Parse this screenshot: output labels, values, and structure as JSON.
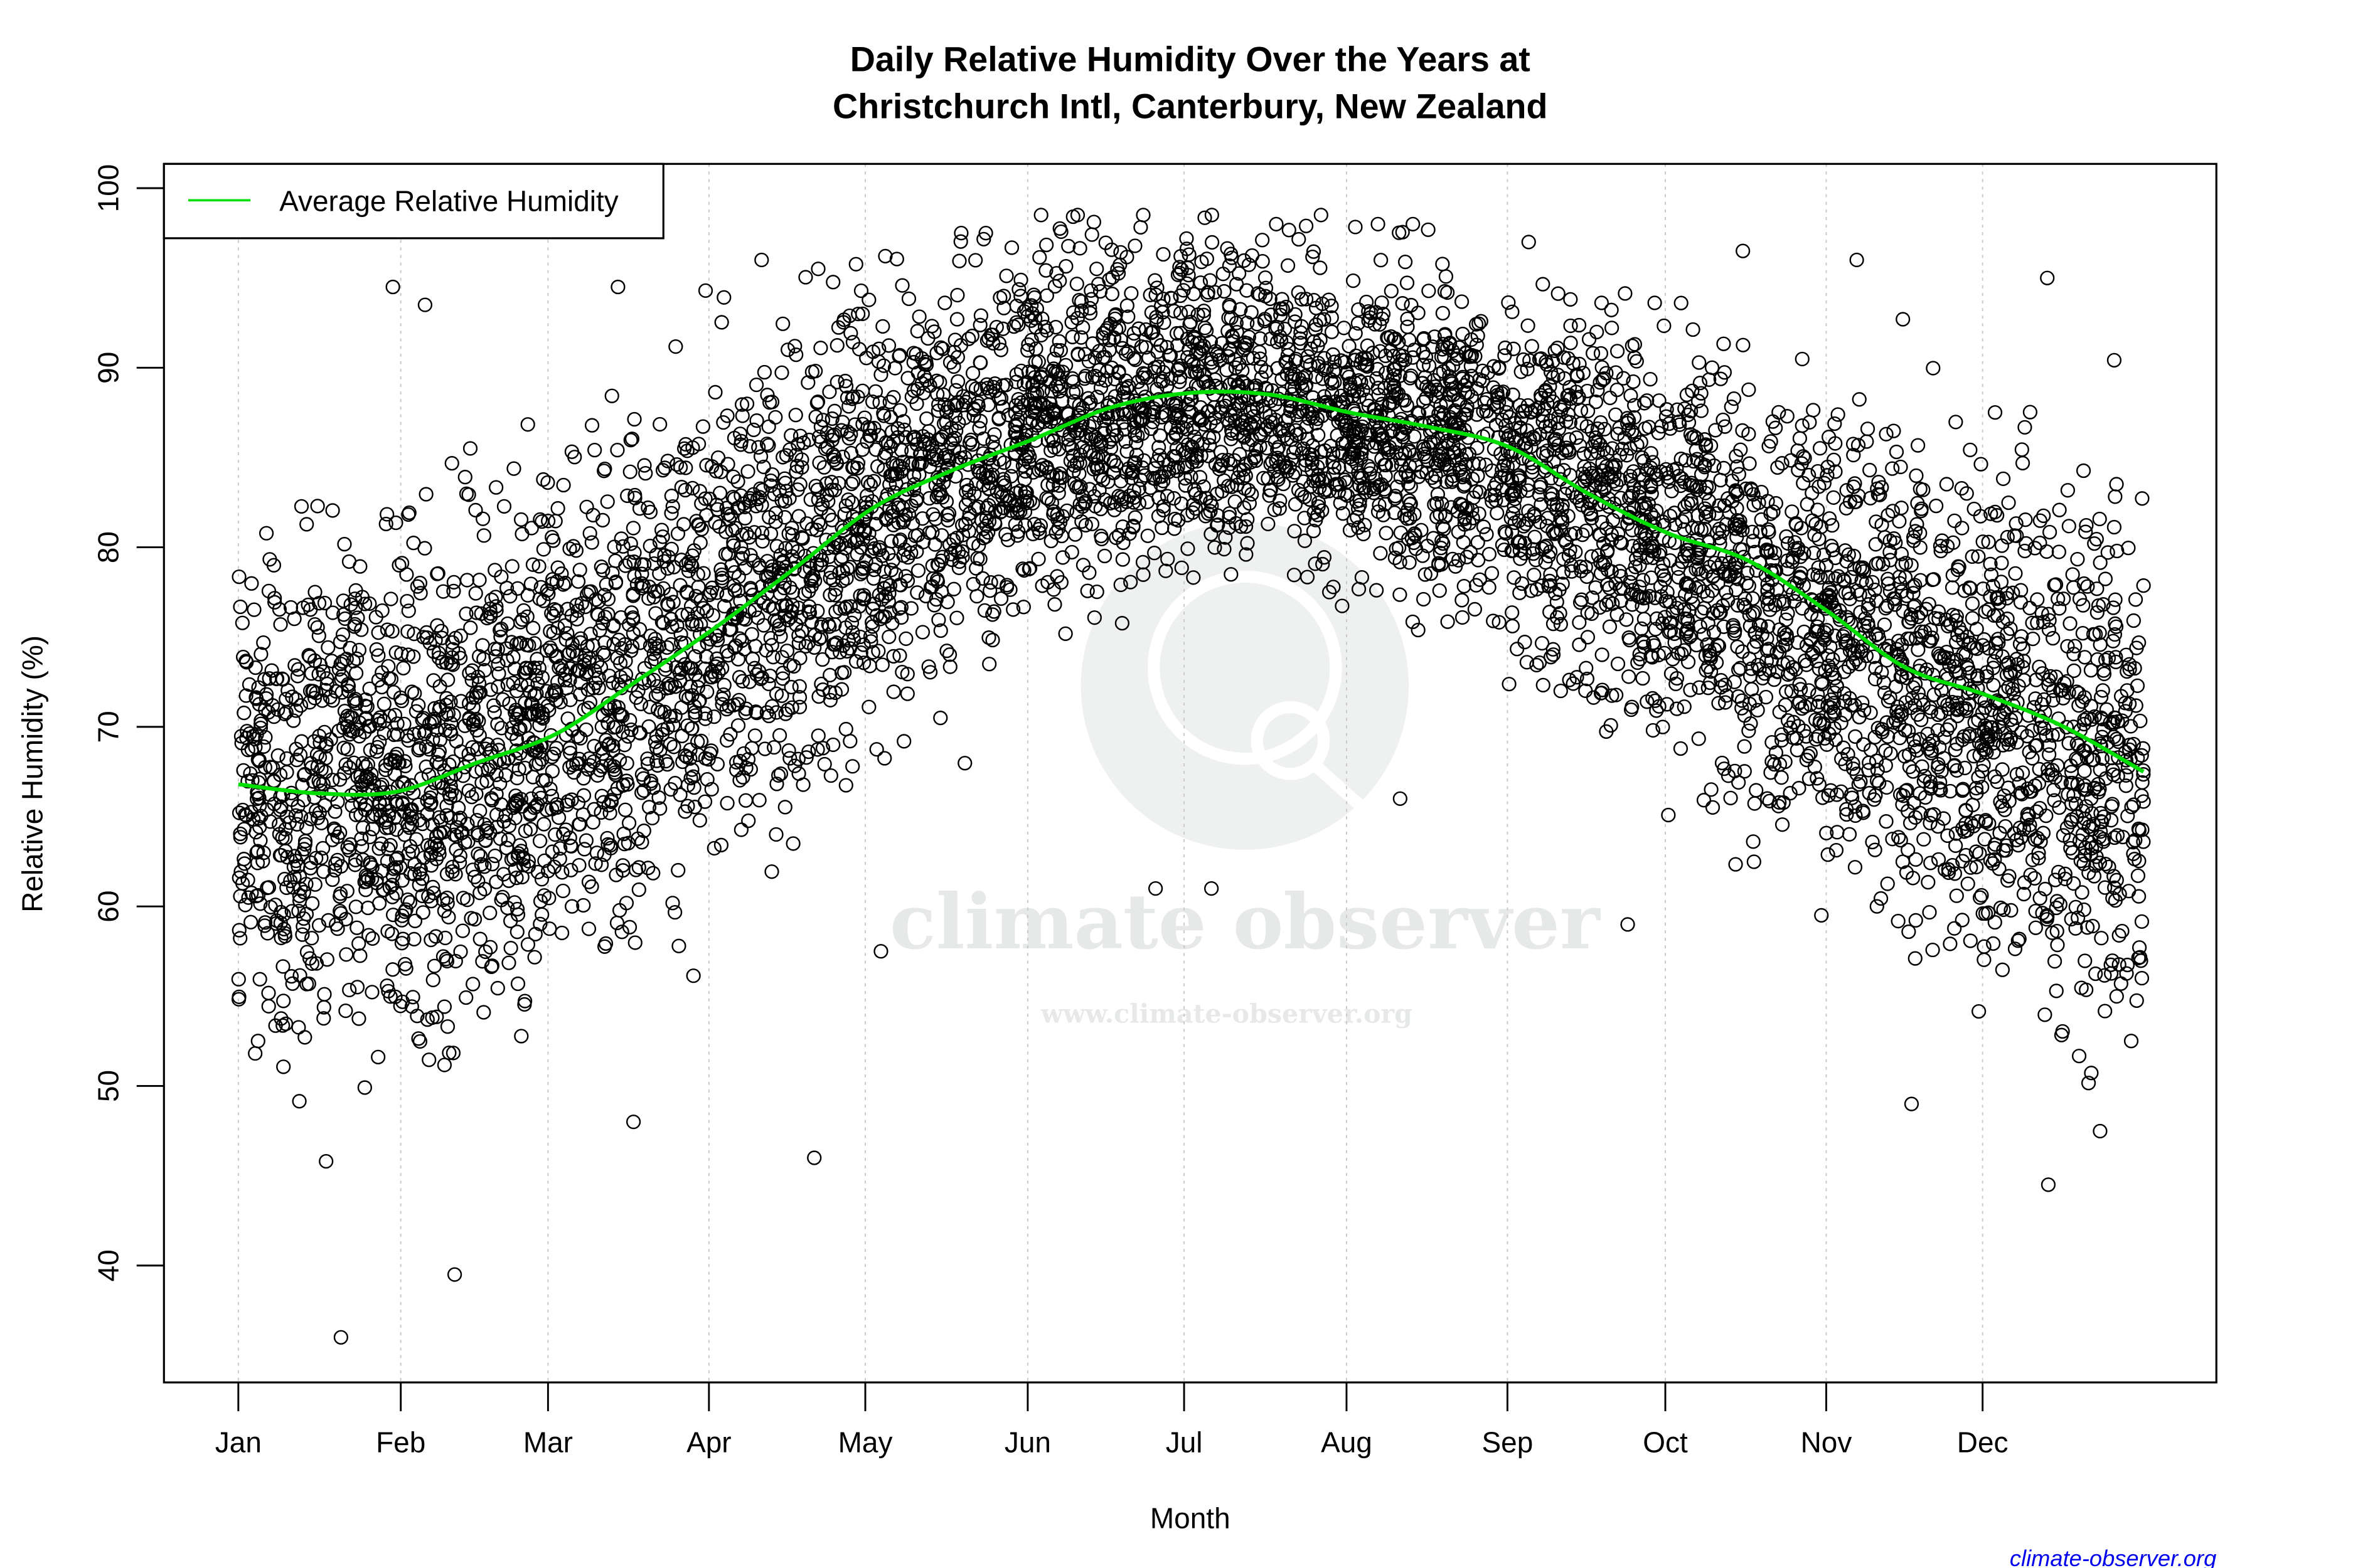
{
  "chart_data": {
    "type": "scatter",
    "title": "Daily Relative Humidity Over the Years at\nChristchurch Intl, Canterbury, New Zealand",
    "title_lines": [
      "Daily Relative Humidity Over the Years at",
      "Christchurch Intl, Canterbury, New Zealand"
    ],
    "xlabel": "Month",
    "ylabel": "Relative Humidity  (%)",
    "x_tick_labels": [
      "Jan",
      "Feb",
      "Mar",
      "Apr",
      "May",
      "Jun",
      "Jul",
      "Aug",
      "Sep",
      "Oct",
      "Nov",
      "Dec"
    ],
    "y_ticks": [
      40,
      50,
      60,
      70,
      80,
      90,
      100
    ],
    "ylim": [
      33,
      101
    ],
    "grid": "vertical dotted lines at month ticks",
    "legend": {
      "position": "top-left",
      "entries": [
        {
          "label": "Average Relative Humidity",
          "color": "#00dd00"
        }
      ]
    },
    "series": [
      {
        "name": "Daily Relative Humidity",
        "kind": "scatter",
        "marker": "open-circle",
        "color": "#000000",
        "monthly_distribution": [
          {
            "month": "Jan",
            "center": 66.5,
            "low": 36,
            "high": 94.5,
            "spread": 9
          },
          {
            "month": "Feb",
            "center": 66.5,
            "low": 39.5,
            "high": 93.5,
            "spread": 9
          },
          {
            "month": "Mar",
            "center": 70,
            "low": 48,
            "high": 94.5,
            "spread": 8.5
          },
          {
            "month": "Apr",
            "center": 76,
            "low": 46,
            "high": 96,
            "spread": 8
          },
          {
            "month": "May",
            "center": 82,
            "low": 57.5,
            "high": 97.5,
            "spread": 7
          },
          {
            "month": "Jun",
            "center": 86.5,
            "low": 61,
            "high": 98.5,
            "spread": 6
          },
          {
            "month": "Jul",
            "center": 88.5,
            "low": 61,
            "high": 98.5,
            "spread": 5.5
          },
          {
            "month": "Aug",
            "center": 87.5,
            "low": 66,
            "high": 98,
            "spread": 5.5
          },
          {
            "month": "Sep",
            "center": 85,
            "low": 59,
            "high": 97,
            "spread": 6.5
          },
          {
            "month": "Oct",
            "center": 80.5,
            "low": 59.5,
            "high": 96.5,
            "spread": 7.5
          },
          {
            "month": "Nov",
            "center": 75.5,
            "low": 49,
            "high": 96,
            "spread": 8.5
          },
          {
            "month": "Dec",
            "center": 71,
            "low": 44.5,
            "high": 95,
            "spread": 9
          }
        ]
      },
      {
        "name": "Average Relative Humidity",
        "kind": "line",
        "color": "#00dd00",
        "x": [
          "Jan 1",
          "Jan 15",
          "Feb 1",
          "Feb 15",
          "Mar 1",
          "Mar 15",
          "Apr 1",
          "Apr 15",
          "May 1",
          "May 15",
          "Jun 1",
          "Jun 15",
          "Jul 1",
          "Jul 15",
          "Aug 1",
          "Aug 15",
          "Sep 1",
          "Sep 15",
          "Oct 1",
          "Oct 15",
          "Nov 1",
          "Nov 15",
          "Dec 1",
          "Dec 15",
          "Dec 31"
        ],
        "values": [
          66.8,
          66.3,
          66.4,
          68.0,
          69.6,
          72.5,
          75.5,
          78.8,
          82.2,
          84.3,
          86.0,
          87.8,
          88.6,
          88.5,
          87.5,
          86.7,
          85.6,
          83.0,
          80.8,
          79.3,
          76.5,
          73.3,
          71.8,
          70.0,
          67.5
        ]
      }
    ]
  },
  "watermark": {
    "brand": "climate observer",
    "url": "www.climate-observer.org"
  },
  "credit": "climate-observer.org"
}
